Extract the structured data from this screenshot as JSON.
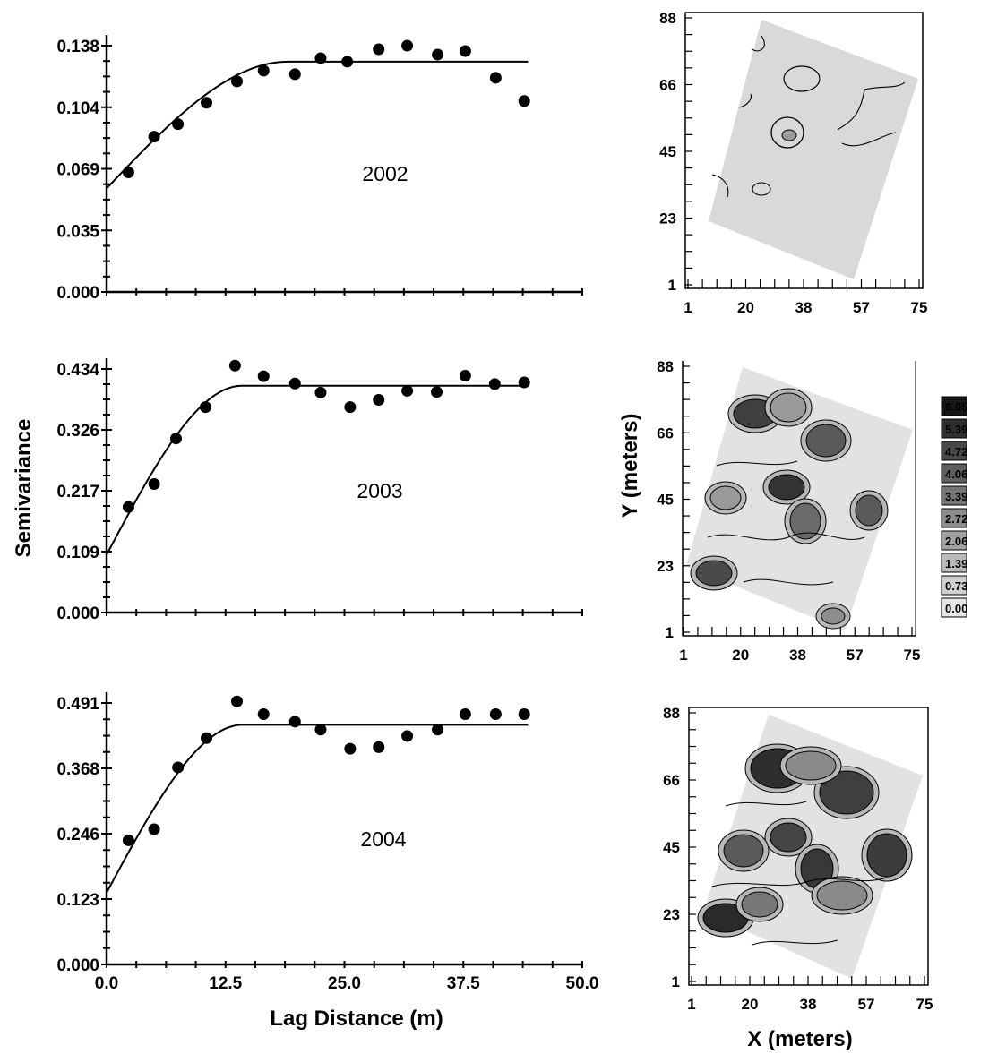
{
  "figure": {
    "ylabel": "Semivariance",
    "xlabel": "Lag Distance (m)",
    "map_xlabel": "X (meters)",
    "map_ylabel": "Y (meters)"
  },
  "chart_data": [
    {
      "type": "scatter",
      "panel": "variogram-2002",
      "annotation": "2002",
      "xlim": [
        0,
        50
      ],
      "ylim": [
        0,
        0.138
      ],
      "xticks": [
        "0.0",
        "12.5",
        "25.0",
        "37.5",
        "50.0"
      ],
      "show_xtick_labels": false,
      "yticks": [
        "0.000",
        "0.035",
        "0.069",
        "0.104",
        "0.138"
      ],
      "x": [
        2.3,
        5.0,
        7.5,
        10.5,
        13.7,
        16.5,
        19.8,
        22.5,
        25.3,
        28.6,
        31.6,
        34.8,
        37.7,
        40.9,
        43.9
      ],
      "y": [
        0.067,
        0.087,
        0.094,
        0.106,
        0.118,
        0.124,
        0.122,
        0.131,
        0.129,
        0.136,
        0.138,
        0.133,
        0.135,
        0.12,
        0.107
      ],
      "model": {
        "kind": "spherical",
        "nugget": 0.058,
        "sill": 0.129,
        "range": 19.0
      }
    },
    {
      "type": "scatter",
      "panel": "variogram-2003",
      "annotation": "2003",
      "xlim": [
        0,
        50
      ],
      "ylim": [
        0,
        0.434
      ],
      "xticks": [
        "0.0",
        "12.5",
        "25.0",
        "37.5",
        "50.0"
      ],
      "show_xtick_labels": false,
      "yticks": [
        "0.000",
        "0.109",
        "0.217",
        "0.326",
        "0.434"
      ],
      "x": [
        2.3,
        5.0,
        7.3,
        10.4,
        13.5,
        16.5,
        19.8,
        22.5,
        25.6,
        28.6,
        31.6,
        34.7,
        37.7,
        40.8,
        43.9
      ],
      "y": [
        0.188,
        0.229,
        0.31,
        0.366,
        0.44,
        0.421,
        0.408,
        0.392,
        0.366,
        0.379,
        0.395,
        0.393,
        0.422,
        0.407,
        0.41
      ],
      "model": {
        "kind": "spherical",
        "nugget": 0.103,
        "sill": 0.404,
        "range": 14.2
      }
    },
    {
      "type": "scatter",
      "panel": "variogram-2004",
      "annotation": "2004",
      "xlim": [
        0,
        50
      ],
      "ylim": [
        0,
        0.491
      ],
      "xticks": [
        "0.0",
        "12.5",
        "25.0",
        "37.5",
        "50.0"
      ],
      "show_xtick_labels": true,
      "yticks": [
        "0.000",
        "0.123",
        "0.246",
        "0.368",
        "0.491"
      ],
      "x": [
        2.3,
        5.0,
        7.5,
        10.5,
        13.7,
        16.5,
        19.8,
        22.5,
        25.6,
        28.6,
        31.6,
        34.8,
        37.7,
        40.9,
        43.9
      ],
      "y": [
        0.233,
        0.254,
        0.37,
        0.425,
        0.494,
        0.47,
        0.456,
        0.441,
        0.405,
        0.408,
        0.429,
        0.441,
        0.47,
        0.47,
        0.47
      ],
      "model": {
        "kind": "spherical",
        "nugget": 0.135,
        "sill": 0.45,
        "range": 14.3
      }
    },
    {
      "type": "heatmap",
      "panel": "map-2002",
      "xticks": [
        "1",
        "20",
        "38",
        "57",
        "75"
      ],
      "yticks": [
        "1",
        "23",
        "45",
        "66",
        "88"
      ],
      "show_x_label": false,
      "show_y_label": false
    },
    {
      "type": "heatmap",
      "panel": "map-2003",
      "xticks": [
        "1",
        "20",
        "38",
        "57",
        "75"
      ],
      "yticks": [
        "1",
        "23",
        "45",
        "66",
        "88"
      ],
      "legend": [
        "6.05",
        "5.39",
        "4.72",
        "4.06",
        "3.39",
        "2.72",
        "2.06",
        "1.39",
        "0.73",
        "0.00"
      ],
      "legend_colors": [
        "#161616",
        "#2f2f2f",
        "#484848",
        "#5e5e5e",
        "#757575",
        "#8c8c8c",
        "#a2a2a2",
        "#bababa",
        "#d0d0d0",
        "#e6e6e6"
      ]
    },
    {
      "type": "heatmap",
      "panel": "map-2004",
      "xticks": [
        "1",
        "20",
        "38",
        "57",
        "75"
      ],
      "yticks": [
        "1",
        "23",
        "45",
        "66",
        "88"
      ]
    }
  ]
}
